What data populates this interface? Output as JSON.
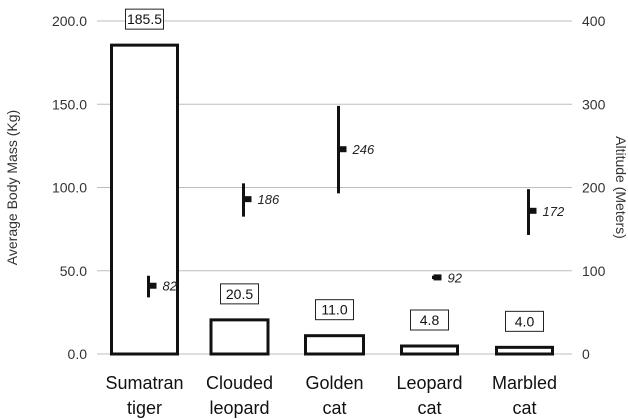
{
  "chart_data": {
    "type": "bar",
    "categories": [
      [
        "Sumatran",
        "tiger"
      ],
      [
        "Clouded",
        "leopard"
      ],
      [
        "Golden",
        "cat"
      ],
      [
        "Leopard",
        "cat"
      ],
      [
        "Marbled",
        "cat"
      ]
    ],
    "series": [
      {
        "name": "Average Body Mass (Kg)",
        "axis": "left",
        "type": "bar",
        "values": [
          185.5,
          20.5,
          11.0,
          4.8,
          4.0
        ],
        "labels": [
          "185.5",
          "20.5",
          "11.0",
          "4.8",
          "4.0"
        ]
      },
      {
        "name": "Altitude (Meters)",
        "axis": "right",
        "type": "range-mean",
        "values": [
          82,
          186,
          246,
          92,
          172
        ],
        "labels": [
          "82",
          "186",
          "246",
          "92",
          "172"
        ],
        "ranges": [
          [
            68,
            94
          ],
          [
            165,
            205
          ],
          [
            193,
            298
          ],
          [
            90,
            94
          ],
          [
            143,
            198
          ]
        ]
      }
    ],
    "ylabel": "Average Body Mass (Kg)",
    "y2label": "Altitude (Meters)",
    "ylim": [
      0,
      200
    ],
    "y2lim": [
      0,
      400
    ],
    "yticks": [
      "0.0",
      "50.0",
      "100.0",
      "150.0",
      "200.0"
    ],
    "y2ticks": [
      "0",
      "100",
      "200",
      "300",
      "400"
    ],
    "grid": true,
    "colors": {
      "grid": "#bdbdbd",
      "bar_outline": "#111111",
      "range": "#111111",
      "text": "#222222"
    }
  }
}
